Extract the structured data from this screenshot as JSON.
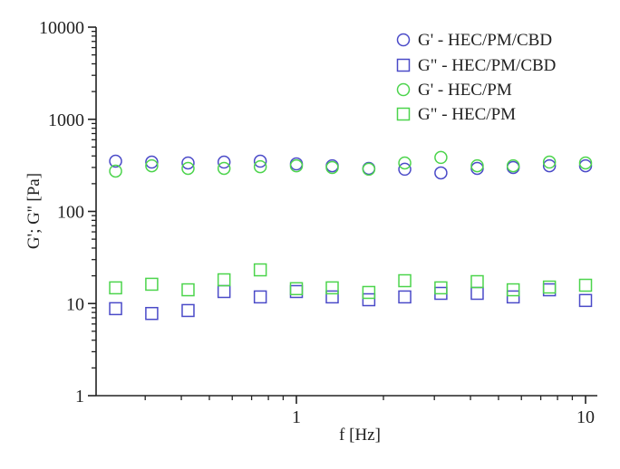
{
  "chart_data": {
    "type": "scatter",
    "title": "",
    "xlabel": "f [Hz]",
    "ylabel": "G'; G'' [Pa]",
    "xscale": "log",
    "yscale": "log",
    "xlim": [
      0.2,
      11
    ],
    "ylim": [
      1,
      10000
    ],
    "grid": false,
    "legend_position": "upper right",
    "x_ticks": [
      {
        "value": 1,
        "label": "1"
      },
      {
        "value": 10,
        "label": "10"
      }
    ],
    "y_ticks": [
      {
        "value": 1,
        "label": "1"
      },
      {
        "value": 10,
        "label": "10"
      },
      {
        "value": 100,
        "label": "100"
      },
      {
        "value": 1000,
        "label": "1000"
      },
      {
        "value": 10000,
        "label": "10000"
      }
    ],
    "x": [
      0.237,
      0.316,
      0.422,
      0.562,
      0.75,
      1.0,
      1.33,
      1.78,
      2.37,
      3.16,
      4.22,
      5.62,
      7.5,
      10.0
    ],
    "series": [
      {
        "name": "G' - HEC/PM/CBD",
        "marker": "circle",
        "color": "#4a4ac8",
        "values": [
          351,
          343,
          336,
          343,
          351,
          328,
          313,
          293,
          287,
          262,
          293,
          300,
          313,
          313
        ]
      },
      {
        "name": "G\" - HEC/PM/CBD",
        "marker": "square",
        "color": "#4a4ac8",
        "values": [
          8.8,
          7.8,
          8.4,
          13.5,
          11.8,
          13.5,
          11.8,
          11.0,
          11.8,
          12.9,
          12.9,
          11.8,
          14.1,
          10.8
        ]
      },
      {
        "name": "G' - HEC/PM",
        "marker": "circle",
        "color": "#4cd44c",
        "values": [
          274,
          313,
          293,
          293,
          306,
          313,
          300,
          287,
          336,
          385,
          313,
          313,
          343,
          336
        ]
      },
      {
        "name": "G\" - HEC/PM",
        "marker": "square",
        "color": "#4cd44c",
        "values": [
          14.8,
          16.2,
          14.1,
          18.1,
          23.2,
          14.5,
          14.8,
          13.2,
          17.7,
          14.8,
          17.3,
          14.1,
          15.1,
          15.8
        ]
      }
    ]
  },
  "legend": {
    "items": [
      {
        "label": "G' - HEC/PM/CBD"
      },
      {
        "label": "G\" - HEC/PM/CBD"
      },
      {
        "label": "G' - HEC/PM"
      },
      {
        "label": "G\" - HEC/PM"
      }
    ]
  },
  "axes": {
    "xlabel": "f [Hz]",
    "ylabel": "G'; G'' [Pa]"
  }
}
